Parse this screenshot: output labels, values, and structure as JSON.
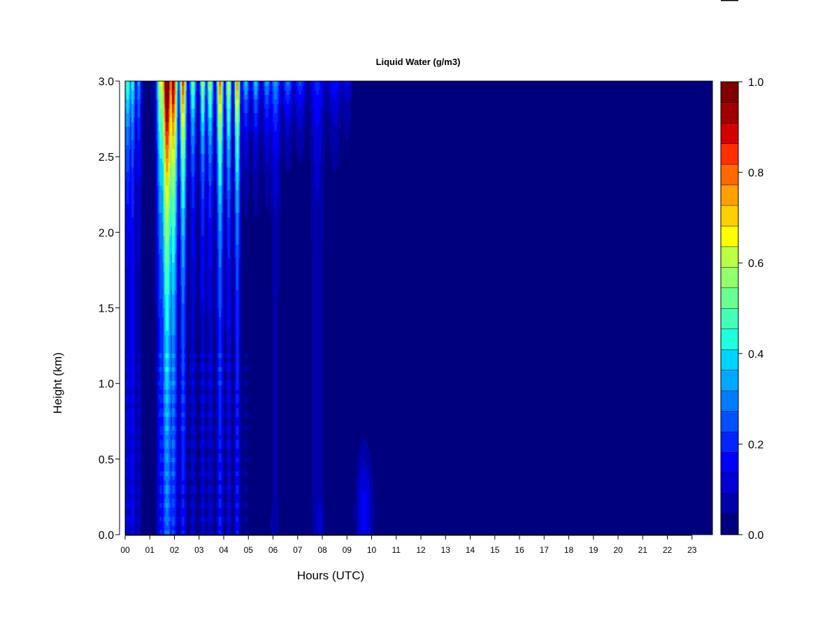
{
  "chart_data": {
    "type": "heatmap",
    "title": "Liquid Water (g/m3)",
    "xlabel": "Hours (UTC)",
    "ylabel": "Height (km)",
    "x_ticks": [
      "00",
      "01",
      "02",
      "03",
      "04",
      "05",
      "06",
      "07",
      "08",
      "09",
      "10",
      "11",
      "12",
      "13",
      "14",
      "15",
      "16",
      "17",
      "18",
      "19",
      "20",
      "21",
      "22",
      "23"
    ],
    "x_range": [
      0,
      23.8
    ],
    "y_ticks": [
      "0.0",
      "0.5",
      "1.0",
      "1.5",
      "2.0",
      "2.5",
      "3.0"
    ],
    "ylim": [
      0,
      3
    ],
    "colorbar": {
      "range": [
        0,
        1
      ],
      "tick_labels": [
        "0.0",
        "0.2",
        "0.4",
        "0.6",
        "0.8",
        "1.0"
      ],
      "levels": 20,
      "colors": [
        "#00007F",
        "#0000A8",
        "#0000D4",
        "#0000FF",
        "#0025FF",
        "#0050FF",
        "#007DFF",
        "#00A8FF",
        "#00D4FF",
        "#20FFDE",
        "#45FFB8",
        "#6BFF92",
        "#92FF6B",
        "#B8FF45",
        "#FFFF00",
        "#FFD000",
        "#FFA000",
        "#FF6A00",
        "#FF3000",
        "#D40000",
        "#A00000",
        "#800000"
      ]
    },
    "background_value": 0.0,
    "columns": [
      {
        "t": 0.1,
        "w": 0.18,
        "top": 0.42,
        "decay": 0.55,
        "base": 0.1
      },
      {
        "t": 0.3,
        "w": 0.12,
        "top": 0.35,
        "decay": 0.5,
        "base": 0.14
      },
      {
        "t": 0.55,
        "w": 0.12,
        "top": 0.28,
        "decay": 0.45,
        "base": 0.08
      },
      {
        "t": 1.45,
        "w": 0.18,
        "top": 0.55,
        "decay": 0.85,
        "base": 0.14
      },
      {
        "t": 1.7,
        "w": 0.22,
        "top": 0.95,
        "decay": 1.1,
        "base": 0.22
      },
      {
        "t": 1.95,
        "w": 0.18,
        "top": 0.85,
        "decay": 1.0,
        "base": 0.18
      },
      {
        "t": 2.35,
        "w": 0.14,
        "top": 0.75,
        "decay": 0.9,
        "base": 0.15
      },
      {
        "t": 2.75,
        "w": 0.14,
        "top": 0.48,
        "decay": 0.55,
        "base": 0.09
      },
      {
        "t": 3.15,
        "w": 0.12,
        "top": 0.55,
        "decay": 0.6,
        "base": 0.1
      },
      {
        "t": 3.45,
        "w": 0.14,
        "top": 0.55,
        "decay": 0.55,
        "base": 0.09
      },
      {
        "t": 3.85,
        "w": 0.14,
        "top": 0.7,
        "decay": 0.75,
        "base": 0.16
      },
      {
        "t": 4.2,
        "w": 0.12,
        "top": 0.6,
        "decay": 0.65,
        "base": 0.1
      },
      {
        "t": 4.55,
        "w": 0.12,
        "top": 0.7,
        "decay": 0.7,
        "base": 0.15
      },
      {
        "t": 4.9,
        "w": 0.16,
        "top": 0.4,
        "decay": 0.35,
        "base": 0.02
      },
      {
        "t": 5.3,
        "w": 0.16,
        "top": 0.4,
        "decay": 0.35,
        "base": 0.02
      },
      {
        "t": 5.75,
        "w": 0.18,
        "top": 0.35,
        "decay": 0.35,
        "base": 0.02
      },
      {
        "t": 6.1,
        "w": 0.22,
        "top": 0.3,
        "decay": 0.4,
        "base": 0.06
      },
      {
        "t": 6.6,
        "w": 0.22,
        "top": 0.3,
        "decay": 0.3,
        "base": 0.01
      },
      {
        "t": 7.1,
        "w": 0.25,
        "top": 0.25,
        "decay": 0.3,
        "base": 0.01
      },
      {
        "t": 7.8,
        "w": 0.3,
        "top": 0.15,
        "decay": 0.35,
        "base": 0.08
      },
      {
        "t": 8.5,
        "w": 0.3,
        "top": 0.18,
        "decay": 0.4,
        "base": 0.01
      },
      {
        "t": 9.0,
        "w": 0.2,
        "top": 0.15,
        "decay": 0.3,
        "base": 0.01
      }
    ],
    "low_features": [
      {
        "t": 9.7,
        "h": 0.15,
        "wt": 0.35,
        "wh": 0.45,
        "v": 0.16
      },
      {
        "t": 7.9,
        "h": 0.1,
        "wt": 0.18,
        "wh": 0.25,
        "v": 0.12
      },
      {
        "t": 6.0,
        "h": 0.08,
        "wt": 0.1,
        "wh": 0.15,
        "v": 0.1
      }
    ]
  }
}
